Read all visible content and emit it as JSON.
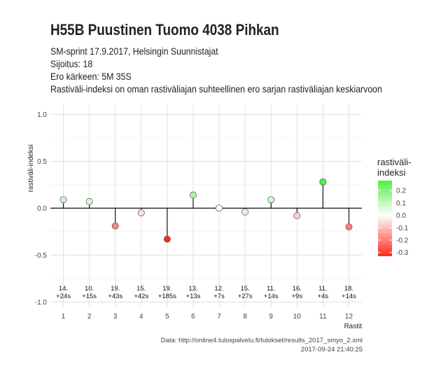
{
  "header": {
    "title": "H55B Puustinen Tuomo 4038 Pihkan",
    "subtitle_lines": [
      "SM-sprint 17.9.2017, Helsingin Suunnistajat",
      "Sijoitus: 18",
      "Ero kärkeen: 5M 35S",
      "Rastiväli-indeksi on oman rastiväliajan suhteellinen ero sarjan rastiväliajan keskiarvoon"
    ]
  },
  "caption": {
    "source": "Data: http://online4.tulospalvelu.fi/tulokset/results_2017_smyo_2.xml",
    "timestamp": "2017-09-24 21:40:25"
  },
  "chart_data": {
    "type": "scatter",
    "xlabel": "Rastit",
    "ylabel": "rastiväli-indeksi",
    "ylim": [
      -1.05,
      1.1
    ],
    "yticks": [
      -1.0,
      -0.5,
      0.0,
      0.5,
      1.0
    ],
    "ytick_labels": [
      "-1.0",
      "-0.5",
      "0.0",
      "0.5",
      "1.0"
    ],
    "xticks": [
      1,
      2,
      3,
      4,
      5,
      6,
      7,
      8,
      9,
      10,
      11,
      12
    ],
    "grid": true,
    "x": [
      1,
      2,
      3,
      4,
      5,
      6,
      7,
      8,
      9,
      10,
      11,
      12
    ],
    "y": [
      0.09,
      0.07,
      -0.19,
      -0.05,
      -0.33,
      0.14,
      0.0,
      -0.04,
      0.09,
      -0.08,
      0.28,
      -0.2
    ],
    "point_labels": [
      [
        "14.",
        "+24s"
      ],
      [
        "10.",
        "+15s"
      ],
      [
        "19.",
        "+43s"
      ],
      [
        "15.",
        "+42s"
      ],
      [
        "19.",
        "+185s"
      ],
      [
        "13.",
        "+13s"
      ],
      [
        "12.",
        "+7s"
      ],
      [
        "15.",
        "+27s"
      ],
      [
        "11.",
        "+14s"
      ],
      [
        "16.",
        "+9s"
      ],
      [
        "11.",
        "+4s"
      ],
      [
        "18.",
        "+14s"
      ]
    ],
    "legend": {
      "title_lines": [
        "rastiväli-",
        "indeksi"
      ],
      "placement": "right",
      "ticks": [
        0.2,
        0.1,
        0.0,
        -0.1,
        -0.2,
        -0.3
      ],
      "tick_labels": [
        "0.2",
        "0.1",
        "0.0",
        "-0.1",
        "-0.2",
        "-0.3"
      ],
      "range": [
        -0.33,
        0.28
      ]
    },
    "colors": {
      "low": "#ff2a1a",
      "mid": "#ffffff",
      "high": "#55ee44"
    }
  }
}
